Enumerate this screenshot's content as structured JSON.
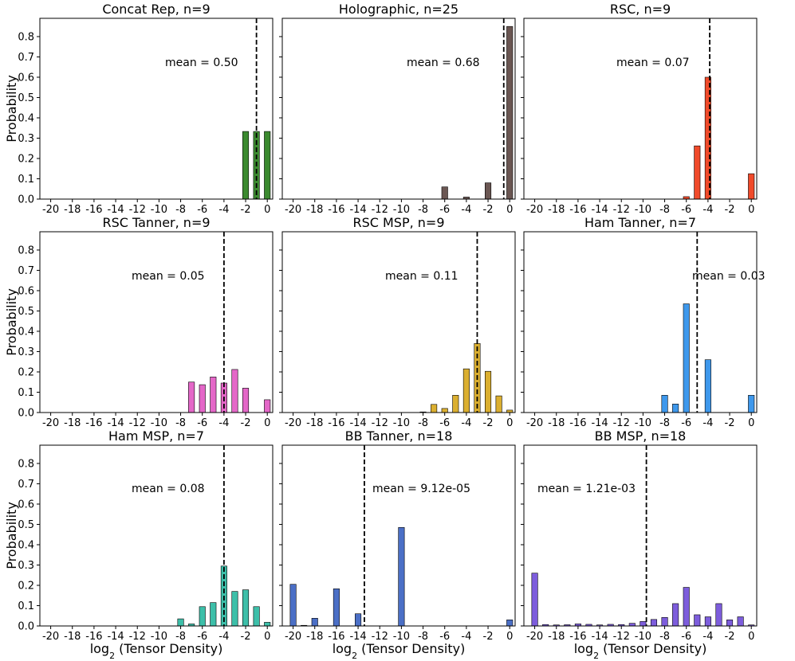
{
  "chart_data": {
    "type": "bar",
    "figure": "histograms of log2 tensor density",
    "x_ticks": [
      "-20",
      "-18",
      "-16",
      "-14",
      "-12",
      "-10",
      "-8",
      "-6",
      "-4",
      "-2",
      "0"
    ],
    "y_ticks": [
      "0.0",
      "0.1",
      "0.2",
      "0.3",
      "0.4",
      "0.5",
      "0.6",
      "0.7",
      "0.8"
    ],
    "xlim": [
      -21,
      0.5
    ],
    "ylim": [
      0,
      0.89
    ],
    "ylabel": "Probability",
    "xlabel_prefix": "log",
    "xlabel_subscript": "2",
    "xlabel_suffix": " (Tensor Density)",
    "panels": [
      {
        "title": "Concat Rep, n=9",
        "color": "#3b8a2f",
        "mean_text": "mean = 0.50",
        "mean_line_x": -1,
        "bars": [
          {
            "x": -2,
            "y": 0.333
          },
          {
            "x": -1,
            "y": 0.333
          },
          {
            "x": 0,
            "y": 0.333
          }
        ]
      },
      {
        "title": "Holographic, n=25",
        "color": "#6b5753",
        "mean_text": "mean = 0.68",
        "mean_line_x": -0.55,
        "bars": [
          {
            "x": -6,
            "y": 0.06
          },
          {
            "x": -4,
            "y": 0.01
          },
          {
            "x": -2,
            "y": 0.08
          },
          {
            "x": 0,
            "y": 0.85
          }
        ]
      },
      {
        "title": "RSC, n=9",
        "color": "#f04a2a",
        "mean_text": "mean = 0.07",
        "mean_line_x": -3.84,
        "bars": [
          {
            "x": -6,
            "y": 0.012
          },
          {
            "x": -5,
            "y": 0.262
          },
          {
            "x": -4,
            "y": 0.6
          },
          {
            "x": 0,
            "y": 0.125
          }
        ]
      },
      {
        "title": "RSC Tanner, n=9",
        "color": "#e467c8",
        "mean_text": "mean = 0.05",
        "mean_line_x": -4.0,
        "bars": [
          {
            "x": -7,
            "y": 0.15
          },
          {
            "x": -6,
            "y": 0.137
          },
          {
            "x": -5,
            "y": 0.175
          },
          {
            "x": -4,
            "y": 0.145
          },
          {
            "x": -3,
            "y": 0.212
          },
          {
            "x": -2,
            "y": 0.12
          },
          {
            "x": 0,
            "y": 0.063
          }
        ]
      },
      {
        "title": "RSC MSP, n=9",
        "color": "#dbaf30",
        "mean_text": "mean = 0.11",
        "mean_line_x": -3.0,
        "bars": [
          {
            "x": -8,
            "y": 0.003
          },
          {
            "x": -7,
            "y": 0.04
          },
          {
            "x": -6,
            "y": 0.02
          },
          {
            "x": -5,
            "y": 0.085
          },
          {
            "x": -4,
            "y": 0.215
          },
          {
            "x": -3,
            "y": 0.34
          },
          {
            "x": -2,
            "y": 0.203
          },
          {
            "x": -1,
            "y": 0.082
          },
          {
            "x": 0,
            "y": 0.012
          }
        ]
      },
      {
        "title": "Ham Tanner, n=7",
        "color": "#3e98ec",
        "mean_text": "mean = 0.03",
        "mean_line_x": -5.0,
        "bars": [
          {
            "x": -8,
            "y": 0.085
          },
          {
            "x": -7,
            "y": 0.042
          },
          {
            "x": -6,
            "y": 0.535
          },
          {
            "x": -4,
            "y": 0.26
          },
          {
            "x": 0,
            "y": 0.085
          }
        ]
      },
      {
        "title": "Ham MSP, n=7",
        "color": "#3dbfa9",
        "mean_text": "mean = 0.08",
        "mean_line_x": -4.0,
        "bars": [
          {
            "x": -8,
            "y": 0.035
          },
          {
            "x": -7,
            "y": 0.01
          },
          {
            "x": -6,
            "y": 0.095
          },
          {
            "x": -5,
            "y": 0.115
          },
          {
            "x": -4,
            "y": 0.295
          },
          {
            "x": -3,
            "y": 0.17
          },
          {
            "x": -2,
            "y": 0.178
          },
          {
            "x": -1,
            "y": 0.095
          },
          {
            "x": 0,
            "y": 0.018
          }
        ]
      },
      {
        "title": "BB Tanner, n=18",
        "color": "#4b6fc6",
        "mean_text": "mean = 9.12e-05",
        "mean_line_x": -13.42,
        "bars": [
          {
            "x": -20,
            "y": 0.205
          },
          {
            "x": -19,
            "y": 0.003
          },
          {
            "x": -18,
            "y": 0.038
          },
          {
            "x": -16,
            "y": 0.183
          },
          {
            "x": -14,
            "y": 0.06
          },
          {
            "x": -10,
            "y": 0.485
          },
          {
            "x": 0,
            "y": 0.03
          }
        ]
      },
      {
        "title": "BB MSP, n=18",
        "color": "#7d5ddc",
        "mean_text": "mean = 1.21e-03",
        "mean_line_x": -9.69,
        "bars": [
          {
            "x": -20,
            "y": 0.26
          },
          {
            "x": -19,
            "y": 0.007
          },
          {
            "x": -18,
            "y": 0.005
          },
          {
            "x": -17,
            "y": 0.006
          },
          {
            "x": -16,
            "y": 0.01
          },
          {
            "x": -15,
            "y": 0.008
          },
          {
            "x": -14,
            "y": 0.005
          },
          {
            "x": -13,
            "y": 0.008
          },
          {
            "x": -12,
            "y": 0.007
          },
          {
            "x": -11,
            "y": 0.013
          },
          {
            "x": -10,
            "y": 0.022
          },
          {
            "x": -9,
            "y": 0.032
          },
          {
            "x": -8,
            "y": 0.042
          },
          {
            "x": -7,
            "y": 0.11
          },
          {
            "x": -6,
            "y": 0.19
          },
          {
            "x": -5,
            "y": 0.055
          },
          {
            "x": -4,
            "y": 0.045
          },
          {
            "x": -3,
            "y": 0.11
          },
          {
            "x": -2,
            "y": 0.03
          },
          {
            "x": -1,
            "y": 0.045
          },
          {
            "x": 0,
            "y": 0.005
          }
        ]
      }
    ]
  }
}
